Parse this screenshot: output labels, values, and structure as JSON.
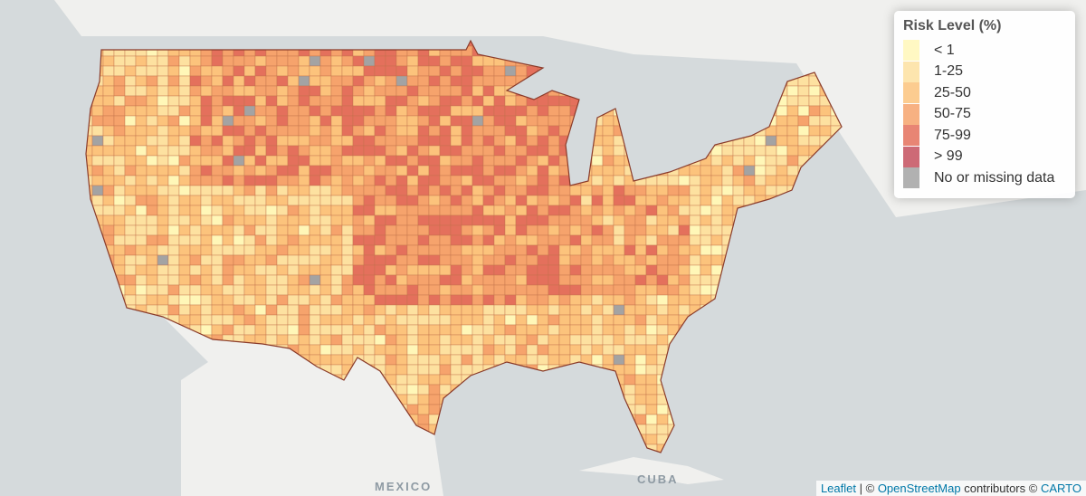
{
  "legend": {
    "title": "Risk Level (%)",
    "items": [
      {
        "label": "< 1",
        "color": "#fff7b8"
      },
      {
        "label": "1-25",
        "color": "#fde1a0"
      },
      {
        "label": "25-50",
        "color": "#fcc37c"
      },
      {
        "label": "50-75",
        "color": "#f6a36c"
      },
      {
        "label": "75-99",
        "color": "#e4705c"
      },
      {
        "label": "> 99",
        "color": "#c4505e"
      },
      {
        "label": "No or missing data",
        "color": "#a3a3a3"
      }
    ]
  },
  "places": {
    "mexico": "MEXICO",
    "cuba": "CUBA"
  },
  "attribution": {
    "leaflet": "Leaflet",
    "sep": "| ©",
    "osm": "OpenStreetMap",
    "contrib": "contributors ©",
    "carto": "CARTO"
  }
}
